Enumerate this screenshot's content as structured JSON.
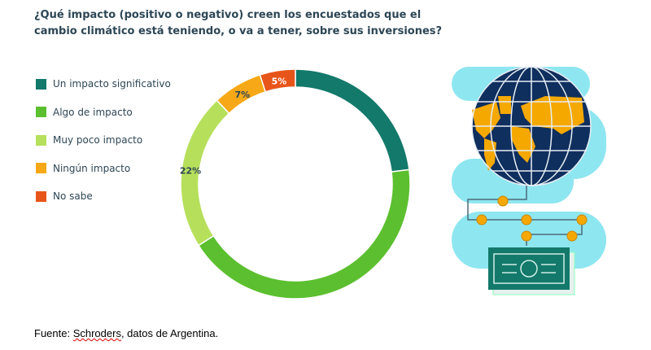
{
  "title": "¿Qué impacto (positivo o negativo) creen los encuestados que el cambio climático está teniendo, o va a tener, sobre sus inversiones?",
  "footer": {
    "prefix": "Fuente: ",
    "source": "Schroders",
    "suffix": ", datos de Argentina."
  },
  "chart_data": {
    "type": "pie",
    "variant": "donut",
    "title": "¿Qué impacto (positivo o negativo) creen los encuestados que el cambio climático está teniendo, o va a tener, sobre sus inversiones?",
    "legend_position": "left",
    "categories": [
      "Un impacto significativo",
      "Algo de impacto",
      "Muy poco impacto",
      "Ningún impacto",
      "No sabe"
    ],
    "values": [
      23,
      43,
      22,
      7,
      5
    ],
    "labels": [
      "23%",
      "43%",
      "22%",
      "7%",
      "5%"
    ],
    "colors": [
      "#13796a",
      "#5cbf2f",
      "#b6e05b",
      "#f6a816",
      "#e8551b"
    ]
  },
  "illustration": {
    "icons": [
      "globe-icon",
      "network-nodes-icon",
      "banknote-icon"
    ],
    "colors": {
      "ocean": "#0f2f5e",
      "land": "#f5a800",
      "cloud": "#8ee6f0",
      "note": "#13796a"
    }
  }
}
